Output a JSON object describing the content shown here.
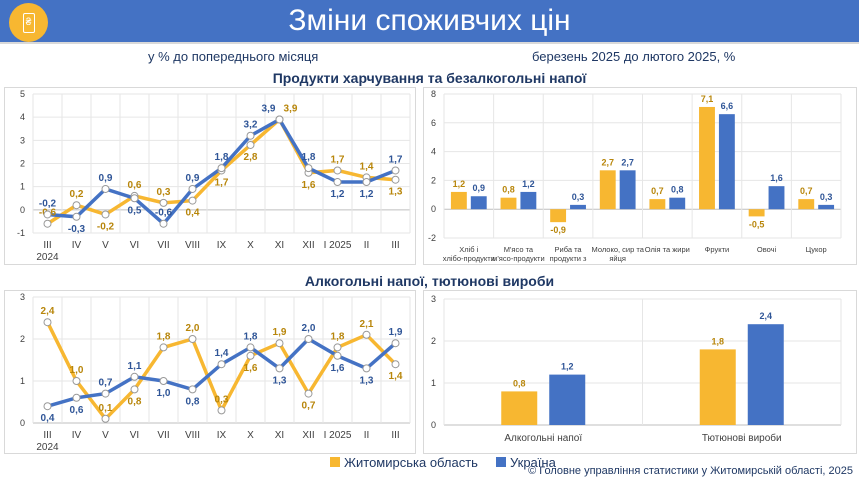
{
  "header": {
    "title": "Зміни споживчих цін",
    "logo_icon": "hryvnia-price-tag-icon"
  },
  "subtitles": {
    "left": "у % до попереднього місяця",
    "right": "березень 2025 до лютого 2025, %"
  },
  "sections": {
    "food": "Продукти харчування та безалкогольні напої",
    "alcohol": "Алкогольні напої, тютюнові вироби"
  },
  "colors": {
    "region": "#f7b731",
    "ukraine": "#4472c4",
    "label_region": "#b8860b",
    "label_ukraine": "#2f5597"
  },
  "legend": {
    "region": "Житомирська область",
    "ukraine": "Україна"
  },
  "footer": "© Головне управління статистики у Житомирській області, 2025",
  "chart_data": [
    {
      "type": "line",
      "title": "Продукти харчування та безалкогольні напої",
      "categories": [
        "III",
        "IV",
        "V",
        "VI",
        "VII",
        "VIII",
        "IX",
        "X",
        "XI",
        "XII",
        "I 2025",
        "II",
        "III"
      ],
      "year_label": "2024",
      "ylim": [
        -1,
        5
      ],
      "yticks": [
        -1,
        0,
        1,
        2,
        3,
        4,
        5
      ],
      "series": [
        {
          "name": "Житомирська область",
          "values": [
            -0.6,
            0.2,
            -0.2,
            0.6,
            0.3,
            0.4,
            1.7,
            2.8,
            3.9,
            1.6,
            1.7,
            1.4,
            1.3
          ]
        },
        {
          "name": "Україна",
          "values": [
            -0.2,
            -0.3,
            0.9,
            0.5,
            -0.6,
            0.9,
            1.8,
            3.2,
            3.9,
            1.8,
            1.2,
            1.2,
            1.7
          ]
        }
      ]
    },
    {
      "type": "bar",
      "categories": [
        "Хліб і хлібо-продукти",
        "М'ясо та м'ясо-продукти",
        "Риба та продукти з риби",
        "Молоко, сир та яйця",
        "Олія та жири",
        "Фрукти",
        "Овочі",
        "Цукор"
      ],
      "ylim": [
        -2,
        8
      ],
      "yticks": [
        -2,
        0,
        2,
        4,
        6,
        8
      ],
      "series": [
        {
          "name": "Житомирська область",
          "values": [
            1.2,
            0.8,
            -0.9,
            2.7,
            0.7,
            7.1,
            -0.5,
            0.7
          ]
        },
        {
          "name": "Україна",
          "values": [
            0.9,
            1.2,
            0.3,
            2.7,
            0.8,
            6.6,
            1.6,
            0.3
          ]
        }
      ]
    },
    {
      "type": "line",
      "title": "Алкогольні напої, тютюнові вироби",
      "categories": [
        "III",
        "IV",
        "V",
        "VI",
        "VII",
        "VIII",
        "IX",
        "X",
        "XI",
        "XII",
        "I 2025",
        "II",
        "III"
      ],
      "year_label": "2024",
      "ylim": [
        0,
        3
      ],
      "yticks": [
        0,
        1,
        2,
        3
      ],
      "series": [
        {
          "name": "Житомирська область",
          "values": [
            2.4,
            1.0,
            0.1,
            0.8,
            1.8,
            2.0,
            0.3,
            1.6,
            1.9,
            0.7,
            1.8,
            2.1,
            1.4
          ]
        },
        {
          "name": "Україна",
          "values": [
            0.4,
            0.6,
            0.7,
            1.1,
            1.0,
            0.8,
            1.4,
            1.8,
            1.3,
            2.0,
            1.6,
            1.3,
            1.9
          ]
        }
      ]
    },
    {
      "type": "bar",
      "categories": [
        "Алкогольні напої",
        "Тютюнові вироби"
      ],
      "ylim": [
        0,
        3
      ],
      "yticks": [
        0,
        1,
        2,
        3
      ],
      "series": [
        {
          "name": "Житомирська область",
          "values": [
            0.8,
            1.8
          ]
        },
        {
          "name": "Україна",
          "values": [
            1.2,
            2.4
          ]
        }
      ]
    }
  ]
}
